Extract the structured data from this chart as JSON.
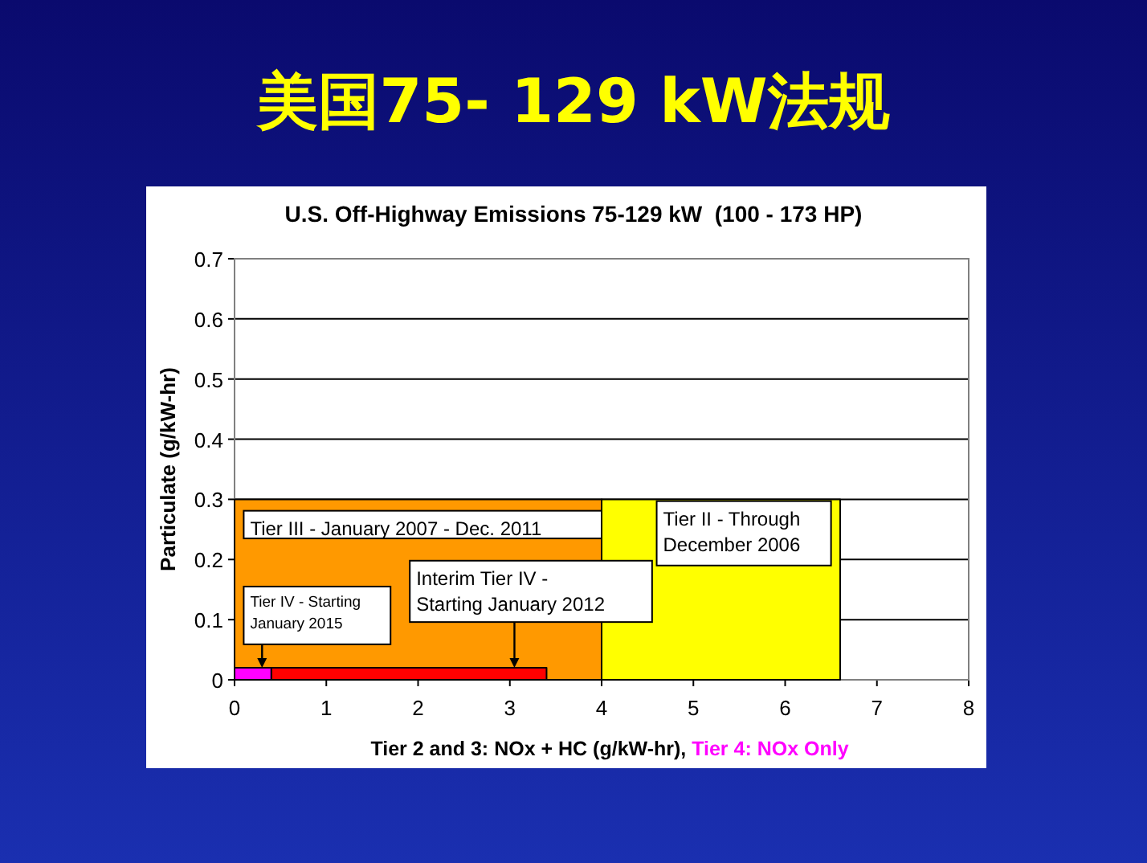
{
  "chart_data": {
    "type": "area",
    "title": "美国75- 129 kW法规",
    "subtitle": "U.S. Off-Highway Emissions 75-129 kW  (100 - 173 HP)",
    "xlabel": "Tier 2 and 3: NOx + HC (g/kW-hr), Tier 4: NOx Only",
    "ylabel": "Particulate (g/kW-hr)",
    "series": [
      {
        "name": "Tier II - Through December 2006",
        "color": "#ffff00",
        "x": [
          4,
          6.6
        ],
        "values": [
          0.3,
          0.3
        ]
      },
      {
        "name": "Tier III - January 2007 - Dec. 2011",
        "color": "#ff9900",
        "x": [
          0,
          4
        ],
        "values": [
          0.3,
          0.3
        ]
      },
      {
        "name": "Interim Tier IV - Starting January 2012",
        "color": "#ff0000",
        "x": [
          0.4,
          3.4
        ],
        "values": [
          0.02,
          0.02
        ]
      },
      {
        "name": "Tier IV - Starting January 2015",
        "color": "#ff00ff",
        "x": [
          0,
          0.4
        ],
        "values": [
          0.02,
          0.02
        ]
      }
    ],
    "xlim": [
      0,
      8
    ],
    "xticks": [
      0,
      1,
      2,
      3,
      4,
      5,
      6,
      7,
      8
    ],
    "ylim": [
      0,
      0.7
    ],
    "yticks": [
      0,
      0.1,
      0.2,
      0.3,
      0.4,
      0.5,
      0.6,
      0.7
    ],
    "grid": "y"
  }
}
